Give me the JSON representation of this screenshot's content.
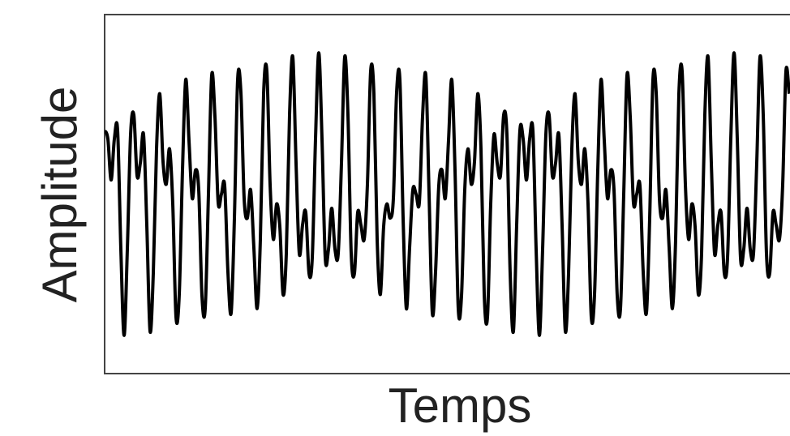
{
  "chart_data": {
    "type": "line",
    "xlabel": "Temps",
    "ylabel": "Amplitude",
    "color": "#000000",
    "xlim": [
      0,
      211
    ],
    "ylim": [
      -1.27,
      1.27
    ],
    "x": [
      0,
      1,
      2,
      3,
      4,
      5,
      6,
      7,
      8,
      9,
      10,
      11,
      12,
      13,
      14,
      15,
      16,
      17,
      18,
      19,
      20,
      21,
      22,
      23,
      24,
      25,
      26,
      27,
      28,
      29,
      30,
      31,
      32,
      33,
      34,
      35,
      36,
      37,
      38,
      39,
      40,
      41,
      42,
      43,
      44,
      45,
      46,
      47,
      48,
      49,
      50,
      51,
      52,
      53,
      54,
      55,
      56,
      57,
      58,
      59,
      60,
      61,
      62,
      63,
      64,
      65,
      66,
      67,
      68,
      69,
      70,
      71,
      72,
      73,
      74,
      75,
      76,
      77,
      78,
      79,
      80,
      81,
      82,
      83,
      84,
      85,
      86,
      87,
      88,
      89,
      90,
      91,
      92,
      93,
      94,
      95,
      96,
      97,
      98,
      99,
      100,
      101,
      102,
      103,
      104,
      105,
      106,
      107,
      108,
      109,
      110,
      111,
      112,
      113,
      114,
      115,
      116,
      117,
      118,
      119,
      120,
      121,
      122,
      123,
      124,
      125,
      126,
      127,
      128,
      129,
      130,
      131,
      132,
      133,
      134,
      135,
      136,
      137,
      138,
      139,
      140,
      141,
      142,
      143,
      144,
      145,
      146,
      147,
      148,
      149,
      150,
      151,
      152,
      153,
      154,
      155,
      156,
      157,
      158,
      159,
      160,
      161,
      162,
      163,
      164,
      165,
      166,
      167,
      168,
      169,
      170,
      171,
      172,
      173,
      174,
      175,
      176,
      177,
      178,
      179,
      180,
      181,
      182,
      183,
      184,
      185,
      186,
      187,
      188,
      189,
      190,
      191,
      192,
      193,
      194,
      195,
      196,
      197,
      198,
      199,
      200,
      201,
      202,
      203,
      204,
      205,
      206,
      207,
      208,
      209,
      210,
      211
    ],
    "values": [
      0.45,
      0.39,
      0.1,
      0.39,
      0.45,
      -0.39,
      -1.0,
      -0.39,
      0.42,
      0.56,
      0.13,
      0.22,
      0.42,
      -0.22,
      -0.97,
      -0.56,
      0.32,
      0.71,
      0.23,
      0.07,
      0.32,
      -0.07,
      -0.87,
      -0.71,
      0.17,
      0.81,
      0.38,
      -0.03,
      0.17,
      0.03,
      -0.72,
      -0.81,
      0,
      0.84,
      0.55,
      -0.06,
      0,
      0.06,
      -0.55,
      -0.84,
      -0.17,
      0.81,
      0.72,
      -0.03,
      -0.17,
      0.03,
      -0.38,
      -0.81,
      -0.32,
      0.71,
      0.87,
      0.07,
      -0.32,
      -0.07,
      -0.23,
      -0.71,
      -0.42,
      0.56,
      0.97,
      0.22,
      -0.42,
      -0.22,
      -0.13,
      -0.56,
      -0.45,
      0.39,
      1.0,
      0.39,
      -0.45,
      -0.39,
      -0.1,
      -0.39,
      -0.42,
      0.22,
      0.97,
      0.56,
      -0.42,
      -0.56,
      -0.13,
      -0.22,
      -0.32,
      0.07,
      0.87,
      0.71,
      -0.32,
      -0.71,
      -0.23,
      -0.07,
      -0.17,
      -0.03,
      0.72,
      0.81,
      -0.17,
      -0.81,
      -0.38,
      0.03,
      0,
      -0.06,
      0.55,
      0.84,
      0,
      -0.84,
      -0.55,
      0.06,
      0.17,
      -0.03,
      0.38,
      0.81,
      0.17,
      -0.81,
      -0.72,
      0.03,
      0.32,
      0.07,
      0.23,
      0.71,
      0.32,
      -0.71,
      -0.87,
      -0.07,
      0.42,
      0.22,
      0.13,
      0.56,
      0.42,
      -0.56,
      -0.97,
      -0.22,
      0.45,
      0.39,
      0.1,
      0.39,
      0.45,
      -0.39,
      -1.0,
      -0.39,
      0.42,
      0.56,
      0.13,
      0.22,
      0.42,
      -0.22,
      -0.97,
      -0.56,
      0.32,
      0.71,
      0.23,
      0.07,
      0.32,
      -0.07,
      -0.87,
      -0.71,
      0.17,
      0.81,
      0.38,
      -0.03,
      0.17,
      0.03,
      -0.72,
      -0.81,
      0,
      0.84,
      0.55,
      -0.06,
      0,
      0.06,
      -0.55,
      -0.84,
      -0.17,
      0.81,
      0.72,
      -0.03,
      -0.17,
      0.03,
      -0.38,
      -0.81,
      -0.32,
      0.71,
      0.87,
      0.07,
      -0.32,
      -0.07,
      -0.23,
      -0.71,
      -0.42,
      0.56,
      0.97,
      0.22,
      -0.42,
      -0.22,
      -0.13,
      -0.56,
      -0.45,
      0.39,
      1.0,
      0.39,
      -0.45,
      -0.39,
      -0.1,
      -0.39,
      -0.42,
      0.22,
      0.97,
      0.56,
      -0.42,
      -0.56,
      -0.13,
      -0.22,
      -0.32,
      0.07,
      0.87,
      0.71
    ]
  }
}
